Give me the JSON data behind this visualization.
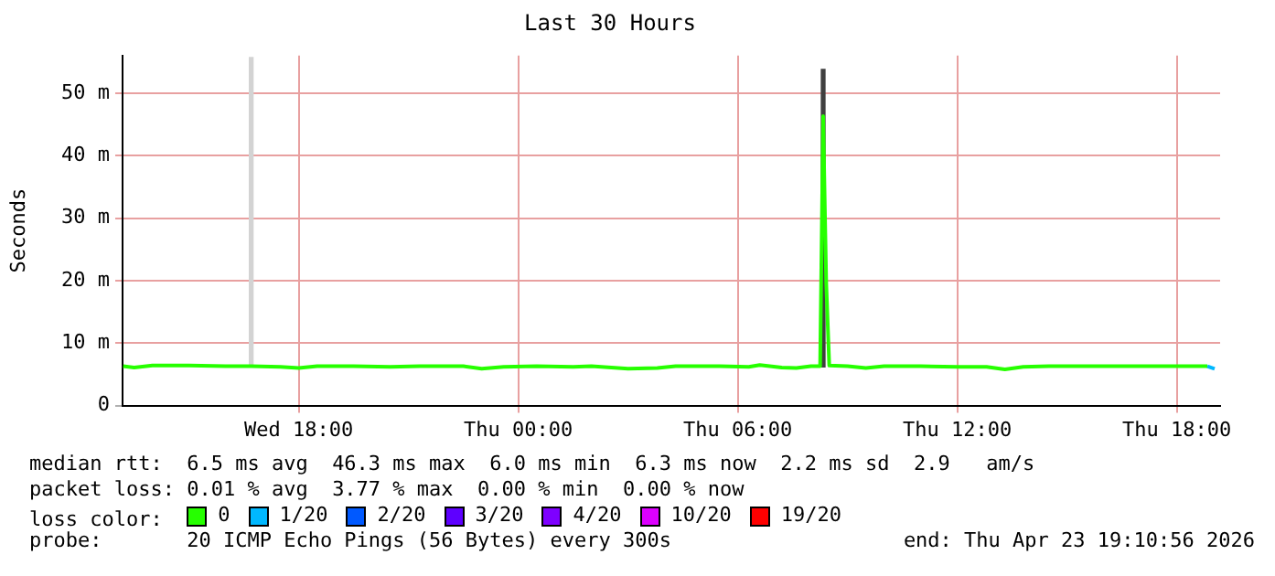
{
  "chart_data": {
    "type": "line",
    "title": "Last 30 Hours",
    "ylabel": "Seconds",
    "legend_title": "loss color:",
    "legend": "bottom",
    "grid": true,
    "marker": "none",
    "line_style": "solid",
    "xlim": [
      "2026-04-22T13:11",
      "2026-04-23T19:11"
    ],
    "xticks": [
      {
        "value": "2026-04-22T18:00",
        "label": "Wed 18:00"
      },
      {
        "value": "2026-04-23T00:00",
        "label": "Thu 00:00"
      },
      {
        "value": "2026-04-23T06:00",
        "label": "Thu 06:00"
      },
      {
        "value": "2026-04-23T12:00",
        "label": "Thu 12:00"
      },
      {
        "value": "2026-04-23T18:00",
        "label": "Thu 18:00"
      }
    ],
    "ylim": [
      0,
      56
    ],
    "yticks": [
      0,
      {
        "value": 10,
        "label": "10 m"
      },
      {
        "value": 20,
        "label": "20 m"
      },
      {
        "value": 30,
        "label": "30 m"
      },
      {
        "value": 40,
        "label": "40 m"
      },
      {
        "value": 50,
        "label": "50 m"
      }
    ],
    "series": [
      {
        "type": "bar",
        "base": [
          6.2,
          6.2
        ],
        "colors": [
          "#d3d3d3",
          "#404040"
        ],
        "x": [
          "2026-04-22T16:42",
          "2026-04-23T08:20"
        ],
        "values": [
          49.5,
          47.6
        ]
      },
      {
        "name": "0",
        "color": "#26ff00",
        "x": [
          "2026-04-22T13:12",
          "2026-04-22T13:30",
          "2026-04-22T14:00",
          "2026-04-22T15:00",
          "2026-04-22T16:00",
          "2026-04-22T16:42",
          "2026-04-22T17:30",
          "2026-04-22T18:00",
          "2026-04-22T18:30",
          "2026-04-22T19:30",
          "2026-04-22T20:30",
          "2026-04-22T21:18",
          "2026-04-22T22:30",
          "2026-04-22T23:00",
          "2026-04-22T23:36",
          "2026-04-23T00:30",
          "2026-04-23T01:30",
          "2026-04-23T02:00",
          "2026-04-23T03:00",
          "2026-04-23T03:48",
          "2026-04-23T04:18",
          "2026-04-23T05:30",
          "2026-04-23T06:18",
          "2026-04-23T06:36",
          "2026-04-23T07:12",
          "2026-04-23T07:36",
          "2026-04-23T08:00",
          "2026-04-23T08:15",
          "2026-04-23T08:20",
          "2026-04-23T08:25",
          "2026-04-23T08:30",
          "2026-04-23T09:00",
          "2026-04-23T09:30",
          "2026-04-23T10:00",
          "2026-04-23T11:00",
          "2026-04-23T12:00",
          "2026-04-23T12:48",
          "2026-04-23T13:18",
          "2026-04-23T13:48",
          "2026-04-23T14:30",
          "2026-04-23T16:00",
          "2026-04-23T17:00",
          "2026-04-23T18:30",
          "2026-04-23T18:50"
        ],
        "values": [
          6.3,
          6.1,
          6.4,
          6.4,
          6.3,
          6.3,
          6.2,
          6.0,
          6.3,
          6.3,
          6.2,
          6.3,
          6.3,
          5.9,
          6.2,
          6.3,
          6.2,
          6.3,
          5.9,
          6.0,
          6.3,
          6.3,
          6.2,
          6.5,
          6.1,
          6.0,
          6.3,
          6.3,
          46.3,
          19.6,
          6.4,
          6.3,
          6.0,
          6.3,
          6.3,
          6.2,
          6.2,
          5.8,
          6.2,
          6.3,
          6.3,
          6.3,
          6.3,
          6.3
        ]
      },
      {
        "name": "1/20",
        "color": "#00b8ff",
        "x": [
          "2026-04-23T18:50",
          "2026-04-23T19:02"
        ],
        "values": [
          6.3,
          5.9
        ]
      },
      {
        "name": "2/20",
        "color": "#0059ff"
      },
      {
        "name": "3/20",
        "color": "#5e00ff"
      },
      {
        "name": "4/20",
        "color": "#7e00ff"
      },
      {
        "name": "10/20",
        "color": "#dd00ff"
      },
      {
        "name": "19/20",
        "color": "#ff0000"
      }
    ],
    "annotations": [
      "median rtt:  6.5 ms avg  46.3 ms max  6.0 ms min  6.3 ms now  2.2 ms sd  2.9   am/s",
      "packet loss: 0.01 % avg  3.77 % max  0.00 % min  0.00 % now",
      "probe:       20 ICMP Echo Pings (56 Bytes) every 300s",
      "end: Thu Apr 23 19:10:56 2026"
    ]
  }
}
